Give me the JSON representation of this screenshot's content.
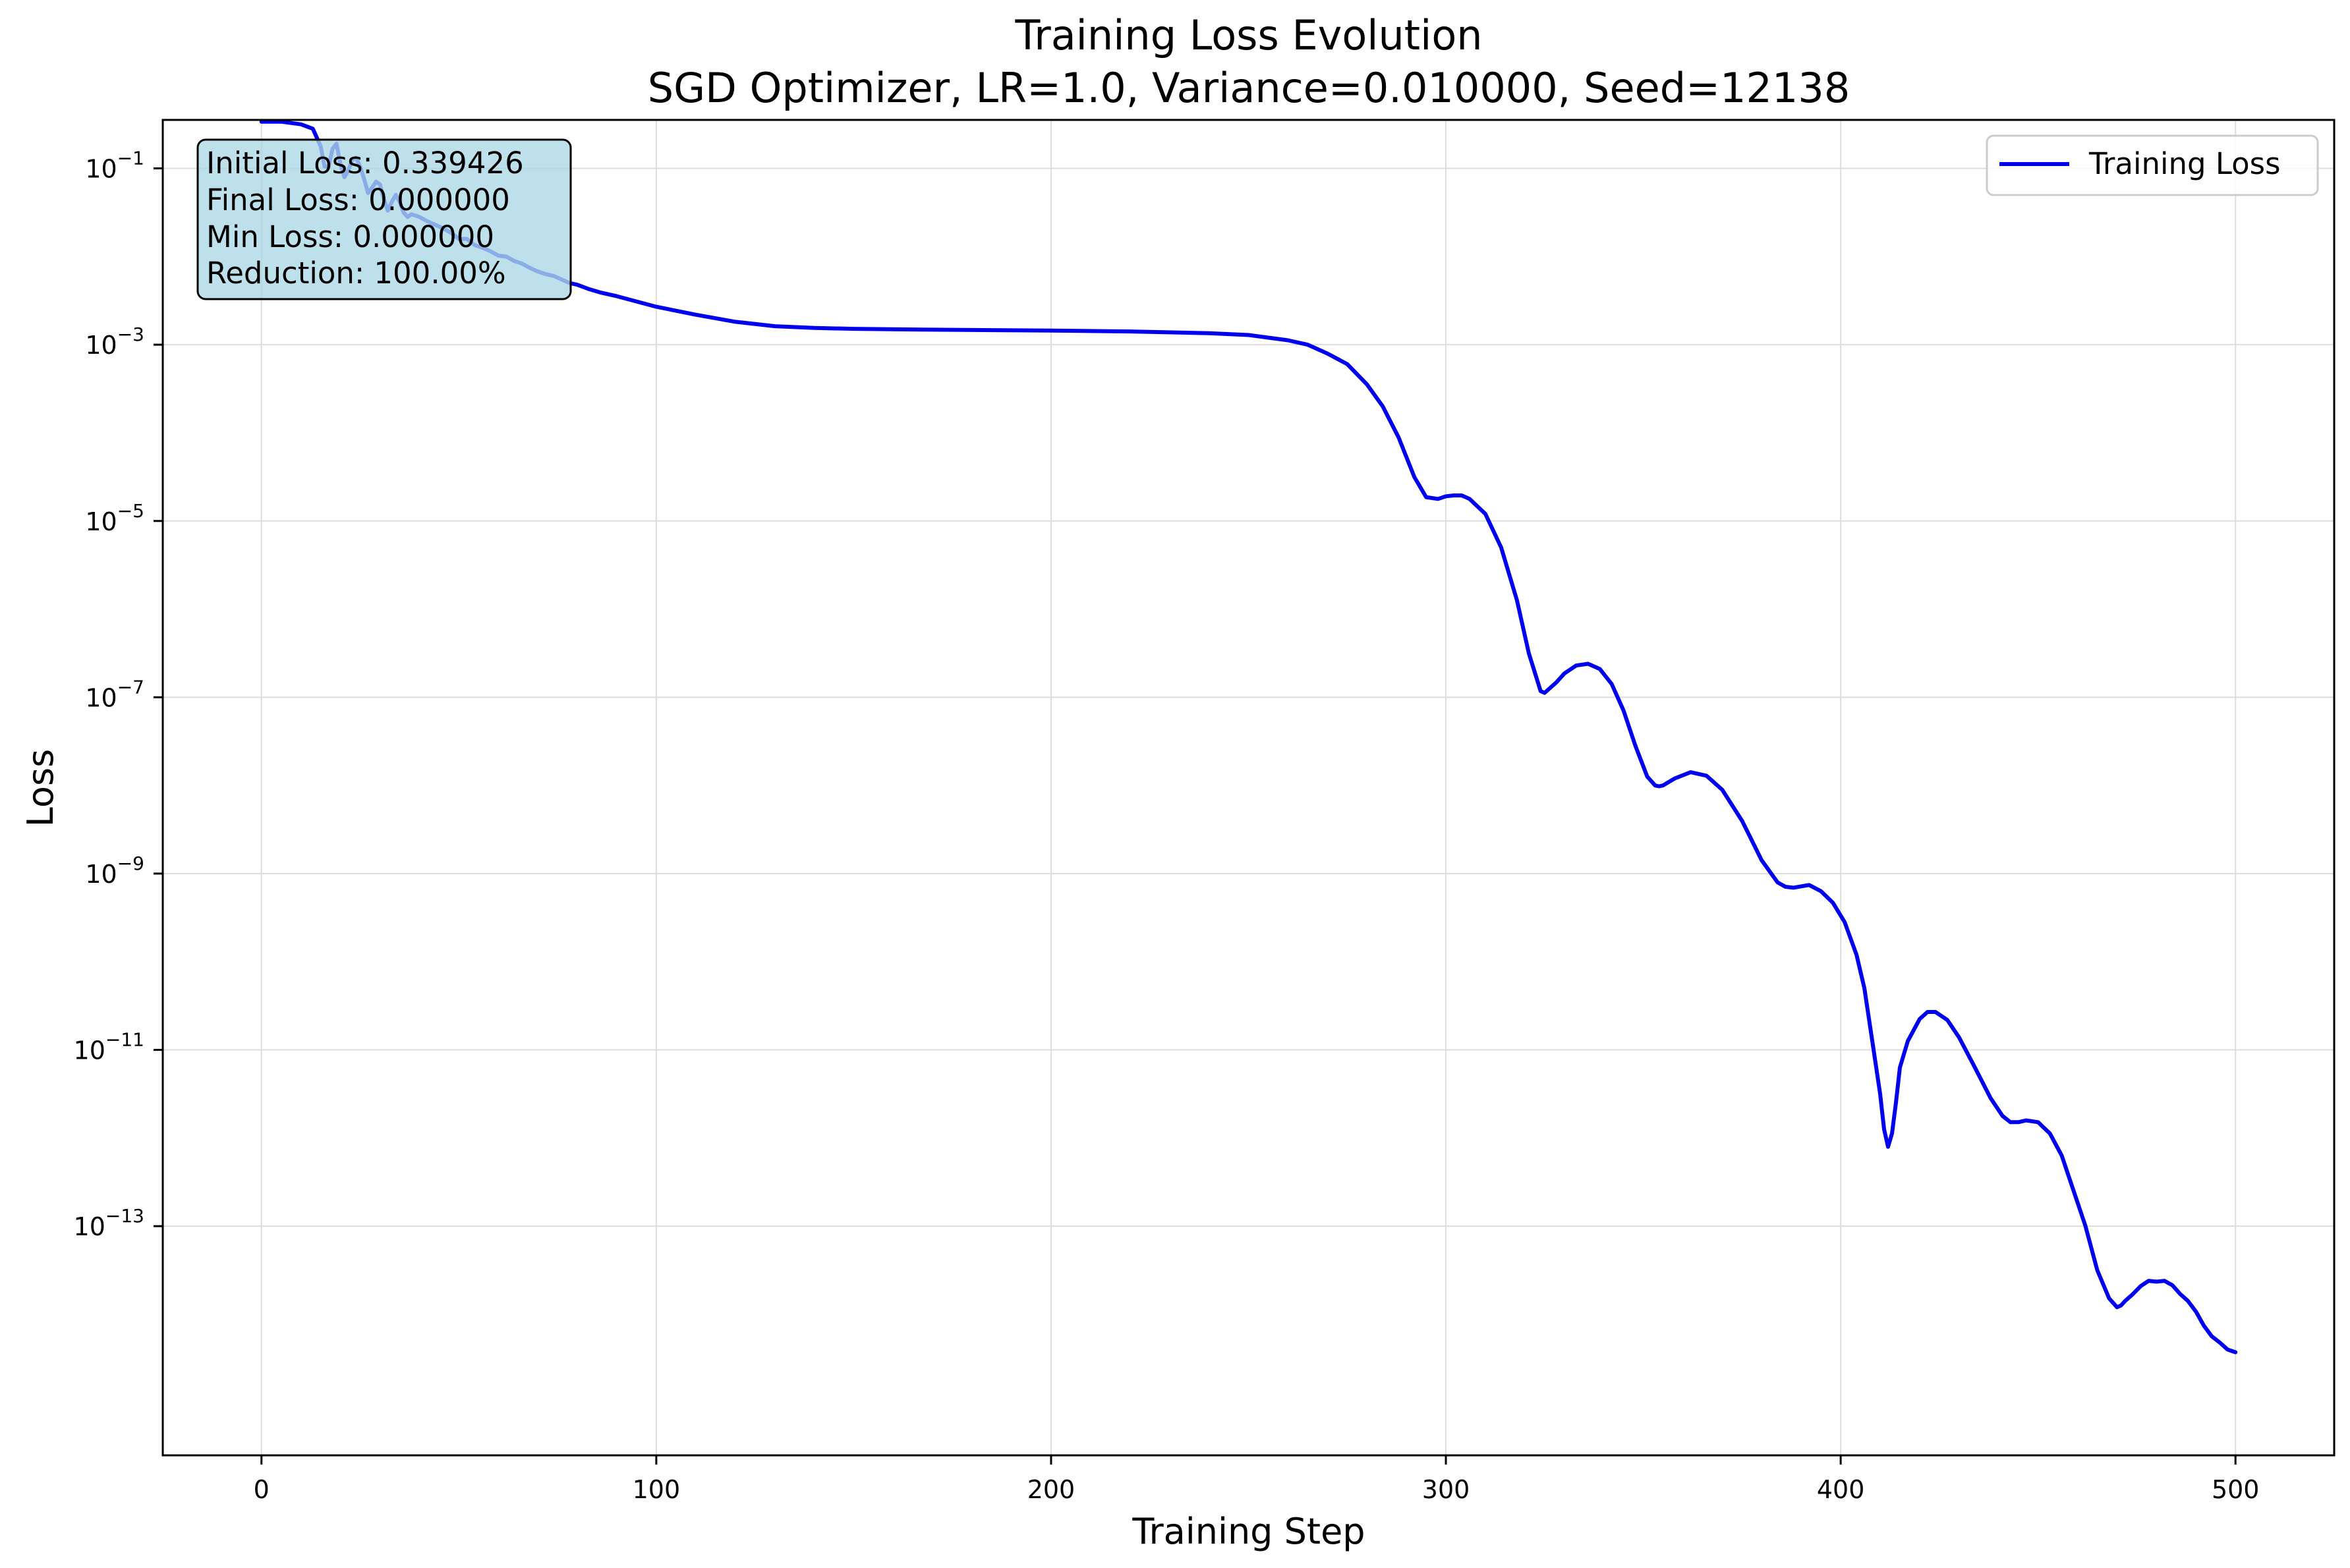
{
  "chart_data": {
    "type": "line",
    "title": "Training Loss Evolution",
    "subtitle": "SGD Optimizer, LR=1.0, Variance=0.010000, Seed=12138",
    "xlabel": "Training Step",
    "ylabel": "Loss",
    "xlim": [
      -25,
      525
    ],
    "ylim_log10": [
      -15.6,
      -0.45
    ],
    "yscale": "log",
    "grid": true,
    "legend_position": "top-right",
    "x_ticks": [
      0,
      100,
      200,
      300,
      400,
      500
    ],
    "y_tick_exponents": [
      -1,
      -3,
      -5,
      -7,
      -9,
      -11,
      -13
    ],
    "colors": {
      "line": "#0000ee",
      "stats_box_bg": "#add8e6",
      "grid": "#dddddd"
    },
    "series": [
      {
        "name": "Training Loss",
        "x": [
          0,
          5,
          10,
          13,
          15,
          16,
          17,
          18,
          19,
          20,
          21,
          22,
          23,
          24,
          25,
          26,
          27,
          28,
          29,
          30,
          31,
          32,
          33,
          34,
          35,
          36,
          37,
          38,
          40,
          42,
          44,
          46,
          48,
          50,
          52,
          54,
          56,
          58,
          60,
          62,
          64,
          66,
          68,
          70,
          72,
          74,
          76,
          78,
          80,
          83,
          86,
          90,
          95,
          100,
          110,
          120,
          130,
          140,
          150,
          170,
          200,
          220,
          240,
          250,
          255,
          260,
          265,
          270,
          275,
          280,
          284,
          288,
          292,
          295,
          298,
          300,
          302,
          304,
          306,
          310,
          314,
          318,
          321,
          324,
          325,
          326,
          328,
          330,
          333,
          336,
          339,
          342,
          345,
          348,
          351,
          353,
          354,
          355,
          358,
          362,
          366,
          370,
          375,
          380,
          384,
          386,
          388,
          392,
          395,
          398,
          401,
          404,
          406,
          408,
          410,
          411,
          412,
          413,
          414,
          415,
          417,
          420,
          422,
          424,
          427,
          430,
          434,
          438,
          441,
          443,
          445,
          447,
          450,
          453,
          456,
          459,
          462,
          465,
          468,
          470,
          471,
          472,
          474,
          476,
          478,
          480,
          482,
          484,
          486,
          488,
          490,
          492,
          494,
          496,
          498,
          500
        ],
        "y_log10": [
          -0.47,
          -0.47,
          -0.5,
          -0.55,
          -0.75,
          -0.98,
          -0.98,
          -0.78,
          -0.72,
          -0.95,
          -1.1,
          -1.02,
          -0.9,
          -0.88,
          -0.98,
          -1.12,
          -1.28,
          -1.22,
          -1.15,
          -1.18,
          -1.35,
          -1.48,
          -1.38,
          -1.3,
          -1.38,
          -1.5,
          -1.55,
          -1.52,
          -1.55,
          -1.6,
          -1.64,
          -1.68,
          -1.73,
          -1.8,
          -1.8,
          -1.87,
          -1.9,
          -1.94,
          -1.99,
          -2.0,
          -2.05,
          -2.08,
          -2.13,
          -2.17,
          -2.2,
          -2.22,
          -2.26,
          -2.3,
          -2.32,
          -2.37,
          -2.41,
          -2.45,
          -2.51,
          -2.57,
          -2.66,
          -2.74,
          -2.79,
          -2.81,
          -2.82,
          -2.83,
          -2.84,
          -2.85,
          -2.87,
          -2.89,
          -2.92,
          -2.95,
          -3.0,
          -3.1,
          -3.22,
          -3.45,
          -3.7,
          -4.05,
          -4.5,
          -4.73,
          -4.75,
          -4.72,
          -4.71,
          -4.71,
          -4.75,
          -4.92,
          -5.3,
          -5.9,
          -6.5,
          -6.93,
          -6.95,
          -6.91,
          -6.83,
          -6.73,
          -6.64,
          -6.62,
          -6.68,
          -6.85,
          -7.15,
          -7.55,
          -7.9,
          -8.0,
          -8.01,
          -8.0,
          -7.92,
          -7.85,
          -7.89,
          -8.05,
          -8.4,
          -8.85,
          -9.1,
          -9.15,
          -9.16,
          -9.13,
          -9.2,
          -9.33,
          -9.55,
          -9.92,
          -10.3,
          -10.9,
          -11.5,
          -11.9,
          -12.1,
          -11.95,
          -11.6,
          -11.2,
          -10.9,
          -10.65,
          -10.57,
          -10.57,
          -10.66,
          -10.86,
          -11.2,
          -11.55,
          -11.75,
          -11.82,
          -11.82,
          -11.8,
          -11.82,
          -11.95,
          -12.2,
          -12.6,
          -13.0,
          -13.5,
          -13.82,
          -13.92,
          -13.9,
          -13.85,
          -13.77,
          -13.68,
          -13.62,
          -13.63,
          -13.62,
          -13.67,
          -13.77,
          -13.85,
          -13.97,
          -14.13,
          -14.25,
          -14.32,
          -14.4,
          -14.43
        ]
      }
    ],
    "stats_box": [
      "Initial Loss: 0.339426",
      "Final Loss: 0.000000",
      "Min Loss: 0.000000",
      "Reduction: 100.00%"
    ]
  }
}
